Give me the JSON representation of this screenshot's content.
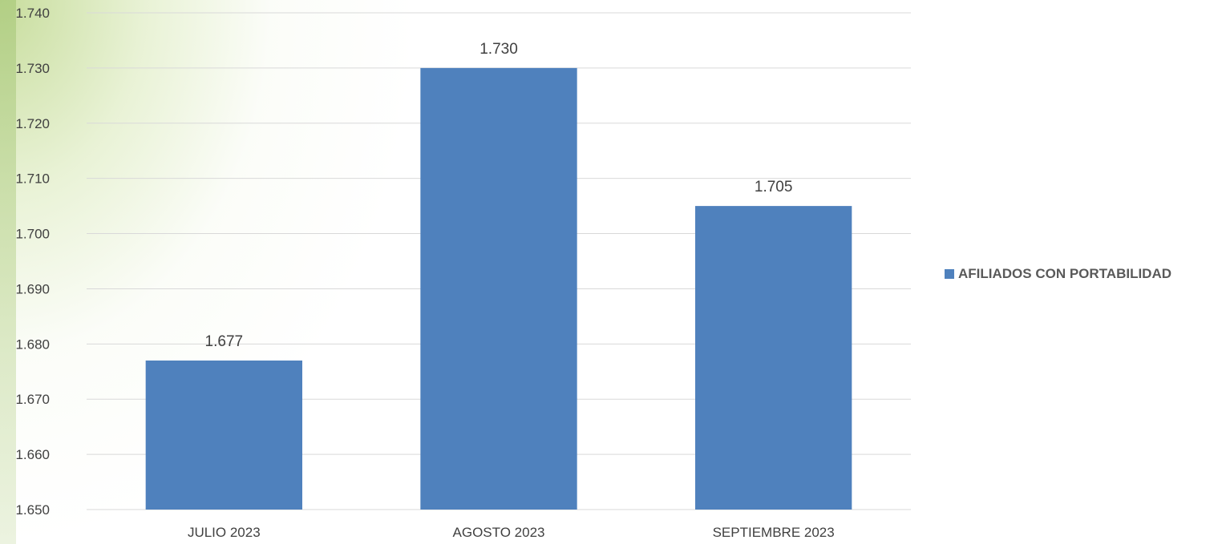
{
  "chart_data": {
    "type": "bar",
    "categories": [
      "JULIO 2023",
      "AGOSTO 2023",
      "SEPTIEMBRE 2023"
    ],
    "series": [
      {
        "name": "AFILIADOS CON PORTABILIDAD",
        "values": [
          1677,
          1730,
          1705
        ],
        "labels": [
          "1.677",
          "1.730",
          "1.705"
        ],
        "color": "#4f81bd"
      }
    ],
    "ylim": [
      1650,
      1740
    ],
    "yticks": [
      1650,
      1660,
      1670,
      1680,
      1690,
      1700,
      1710,
      1720,
      1730,
      1740
    ],
    "ytick_labels": [
      "1.650",
      "1.660",
      "1.670",
      "1.680",
      "1.690",
      "1.700",
      "1.710",
      "1.720",
      "1.730",
      "1.740"
    ],
    "grid": true,
    "legend_position": "right",
    "gridline_color": "#d9d9d9",
    "text_color": "#404040"
  }
}
